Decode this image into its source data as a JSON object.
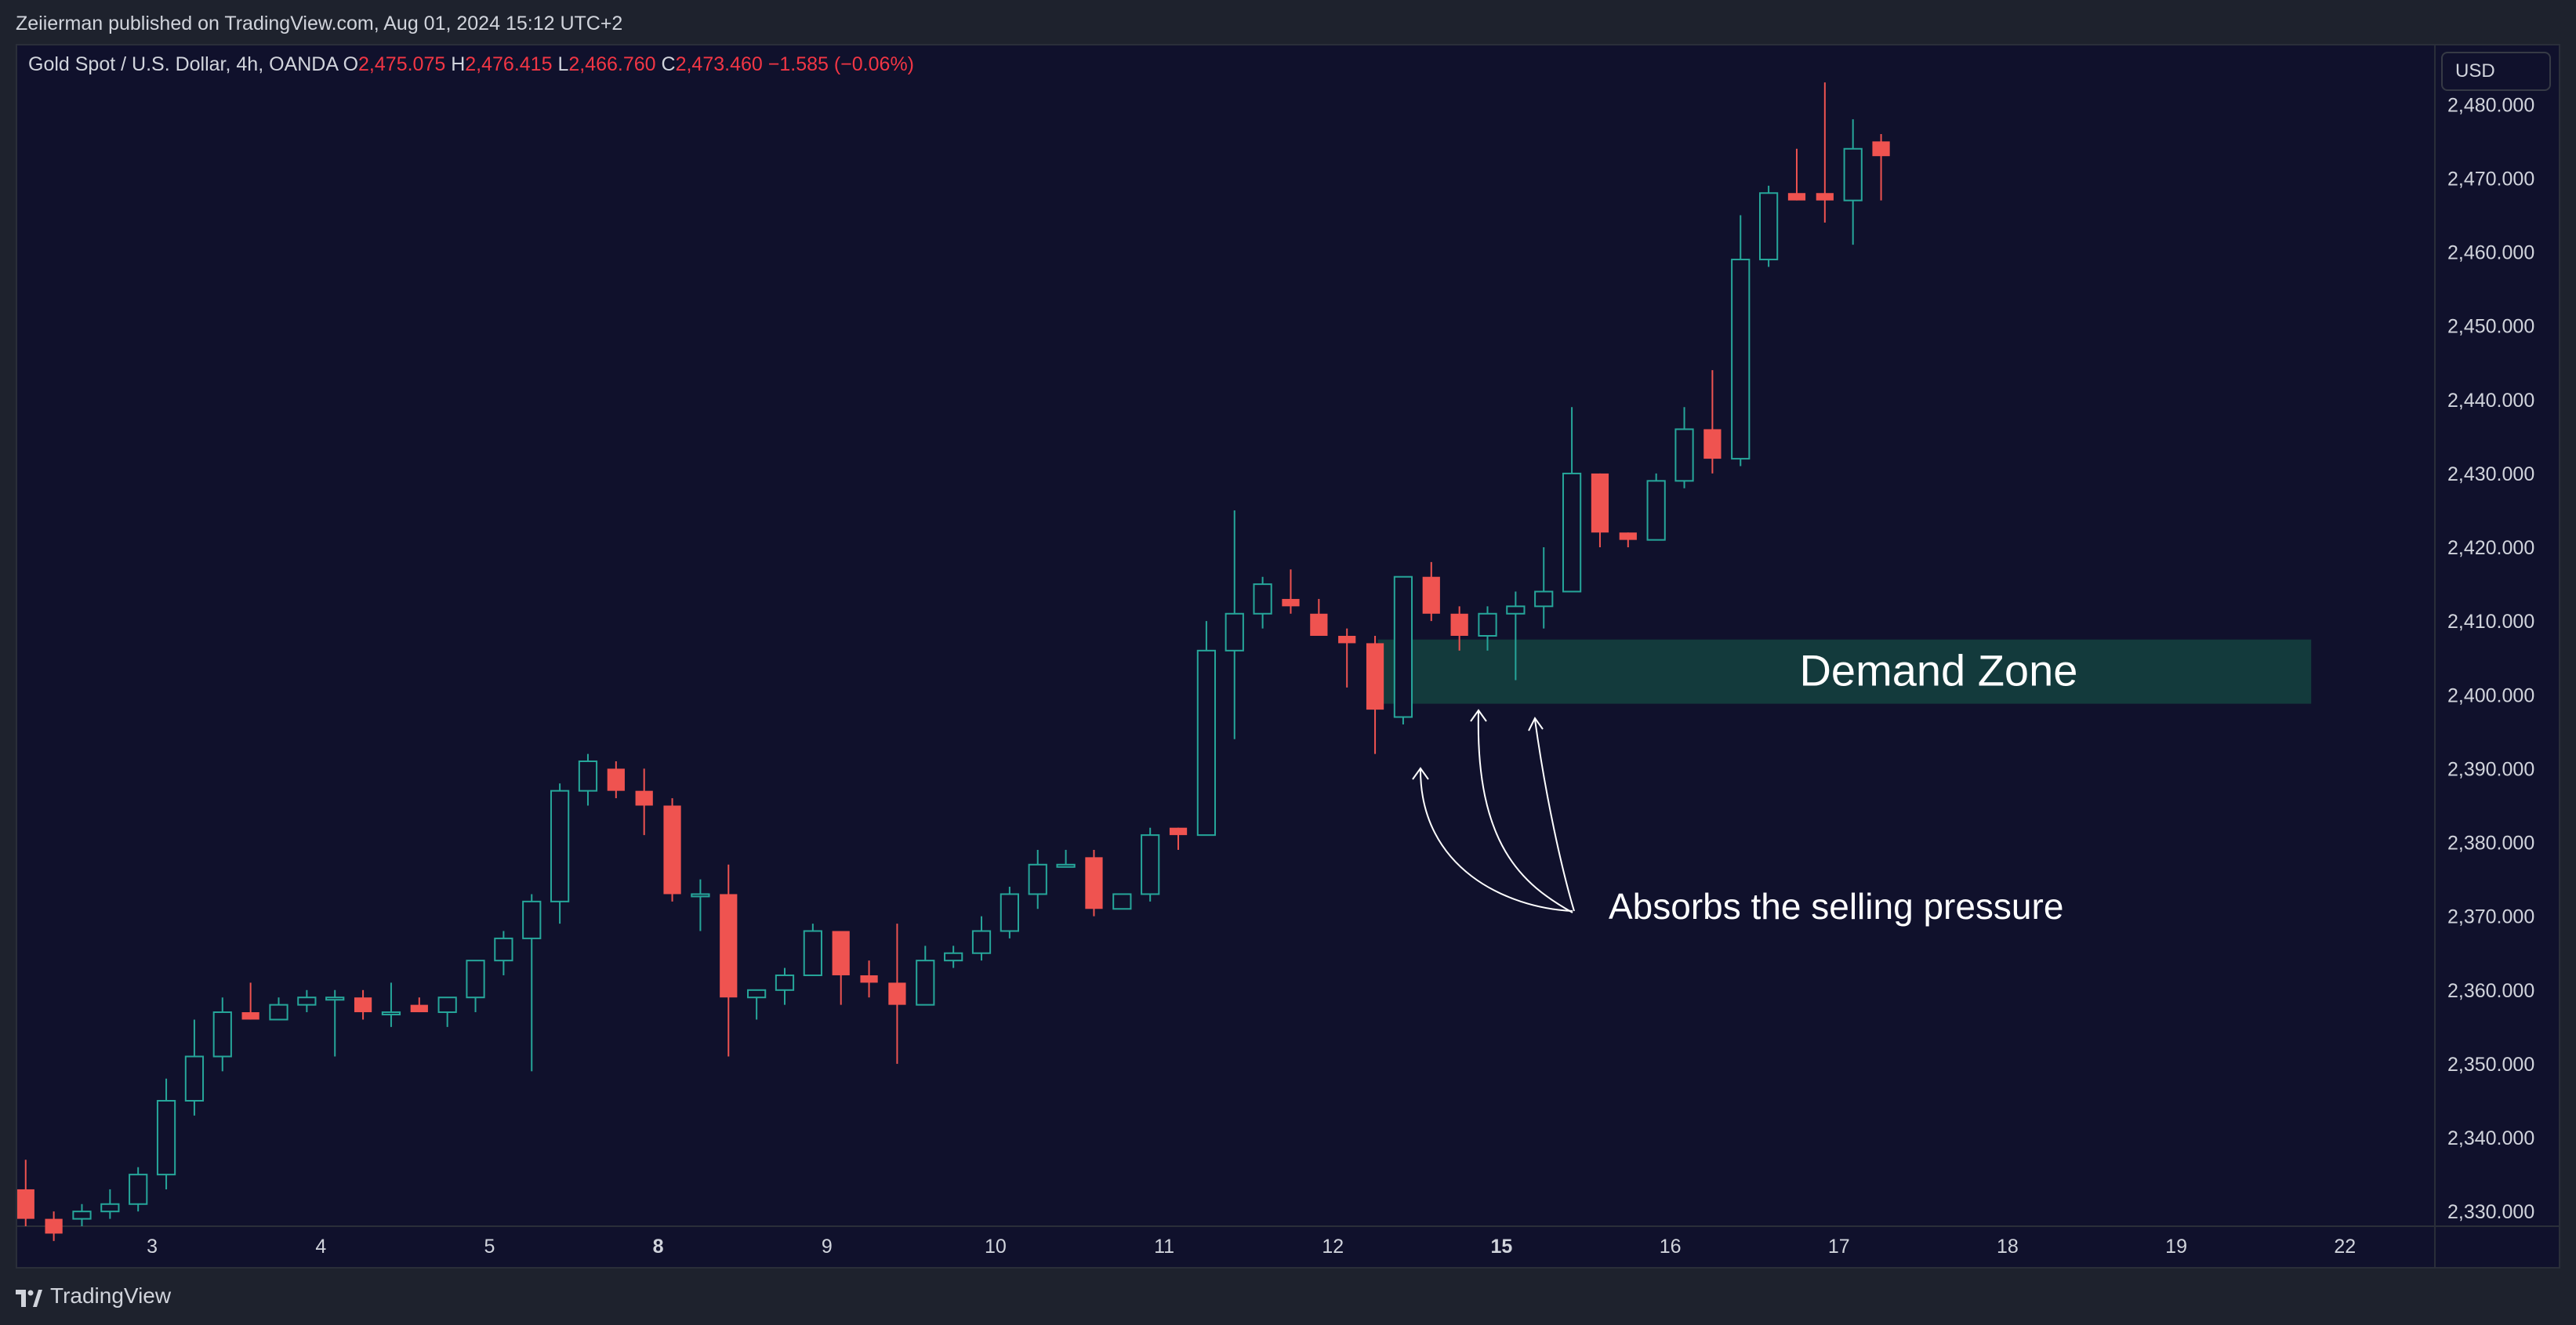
{
  "header": {
    "published": "Zeiierman published on TradingView.com, Aug 01, 2024 15:12 UTC+2"
  },
  "legend": {
    "symbol": "Gold Spot / U.S. Dollar, 4h, OANDA",
    "o_label": "O",
    "o_val": "2,475.075",
    "h_label": "H",
    "h_val": "2,476.415",
    "l_label": "L",
    "l_val": "2,466.760",
    "c_label": "C",
    "c_val": "2,473.460",
    "change": "−1.585 (−0.06%)"
  },
  "currency": "USD",
  "footer": {
    "brand": "TradingView"
  },
  "colors": {
    "background": "#10112c",
    "up_outline": "#26a69a",
    "down_fill": "#ef5350",
    "zone_fill": "#133a3c",
    "text": "#d1d4dc",
    "annotation": "#ffffff"
  },
  "chart_data": {
    "type": "candlestick",
    "y_ticks": [
      "2,330.000",
      "2,340.000",
      "2,350.000",
      "2,360.000",
      "2,370.000",
      "2,380.000",
      "2,390.000",
      "2,400.000",
      "2,410.000",
      "2,420.000",
      "2,430.000",
      "2,440.000",
      "2,450.000",
      "2,460.000",
      "2,470.000",
      "2,480.000"
    ],
    "ylim": [
      2328,
      2488
    ],
    "x_ticks": [
      {
        "label": "3",
        "bar": 4.5,
        "bold": false
      },
      {
        "label": "4",
        "bar": 10.5,
        "bold": false
      },
      {
        "label": "5",
        "bar": 16.5,
        "bold": false
      },
      {
        "label": "8",
        "bar": 22.5,
        "bold": true
      },
      {
        "label": "9",
        "bar": 28.5,
        "bold": false
      },
      {
        "label": "10",
        "bar": 34.5,
        "bold": false
      },
      {
        "label": "11",
        "bar": 40.5,
        "bold": false
      },
      {
        "label": "12",
        "bar": 46.5,
        "bold": false
      },
      {
        "label": "15",
        "bar": 52.5,
        "bold": true
      },
      {
        "label": "16",
        "bar": 58.5,
        "bold": false
      },
      {
        "label": "17",
        "bar": 64.5,
        "bold": false
      },
      {
        "label": "18",
        "bar": 70.5,
        "bold": false
      },
      {
        "label": "19",
        "bar": 76.5,
        "bold": false
      },
      {
        "label": "22",
        "bar": 82.5,
        "bold": false
      }
    ],
    "x_range": [
      -0.3,
      85.7
    ],
    "candles": [
      [
        2333,
        2337,
        2328,
        2329
      ],
      [
        2329,
        2330,
        2326,
        2327
      ],
      [
        2329,
        2331,
        2328,
        2330
      ],
      [
        2330,
        2333,
        2329,
        2331
      ],
      [
        2331,
        2336,
        2330,
        2335
      ],
      [
        2335,
        2348,
        2333,
        2345
      ],
      [
        2345,
        2356,
        2343,
        2351
      ],
      [
        2351,
        2359,
        2349,
        2357
      ],
      [
        2357,
        2361,
        2356,
        2356
      ],
      [
        2356,
        2359,
        2356,
        2358
      ],
      [
        2358,
        2360,
        2357,
        2359
      ],
      [
        2359,
        2360,
        2351,
        2359
      ],
      [
        2359,
        2360,
        2356,
        2357
      ],
      [
        2357,
        2361,
        2355,
        2357
      ],
      [
        2358,
        2359,
        2357,
        2357
      ],
      [
        2357,
        2359,
        2355,
        2359
      ],
      [
        2359,
        2364,
        2357,
        2364
      ],
      [
        2364,
        2368,
        2362,
        2367
      ],
      [
        2367,
        2373,
        2349,
        2372
      ],
      [
        2372,
        2388,
        2369,
        2387
      ],
      [
        2387,
        2392,
        2385,
        2391
      ],
      [
        2390,
        2391,
        2386,
        2387
      ],
      [
        2387,
        2390,
        2381,
        2385
      ],
      [
        2385,
        2386,
        2372,
        2373
      ],
      [
        2373,
        2375,
        2368,
        2373
      ],
      [
        2373,
        2377,
        2351,
        2359
      ],
      [
        2359,
        2360,
        2356,
        2360
      ],
      [
        2360,
        2363,
        2358,
        2362
      ],
      [
        2362,
        2369,
        2362,
        2368
      ],
      [
        2368,
        2368,
        2358,
        2362
      ],
      [
        2362,
        2364,
        2359,
        2361
      ],
      [
        2361,
        2369,
        2350,
        2358
      ],
      [
        2358,
        2366,
        2358,
        2364
      ],
      [
        2364,
        2366,
        2363,
        2365
      ],
      [
        2365,
        2370,
        2364,
        2368
      ],
      [
        2368,
        2374,
        2367,
        2373
      ],
      [
        2373,
        2379,
        2371,
        2377
      ],
      [
        2377,
        2379,
        2377,
        2377
      ],
      [
        2378,
        2379,
        2370,
        2371
      ],
      [
        2371,
        2373,
        2371,
        2373
      ],
      [
        2373,
        2382,
        2372,
        2381
      ],
      [
        2382,
        2382,
        2379,
        2381
      ],
      [
        2381,
        2410,
        2381,
        2406
      ],
      [
        2406,
        2425,
        2394,
        2411
      ],
      [
        2411,
        2416,
        2409,
        2415
      ],
      [
        2413,
        2417,
        2411,
        2412
      ],
      [
        2411,
        2413,
        2408,
        2408
      ],
      [
        2408,
        2409,
        2401,
        2407
      ],
      [
        2407,
        2408,
        2392,
        2398
      ],
      [
        2397,
        2416,
        2396,
        2416
      ],
      [
        2416,
        2418,
        2410,
        2411
      ],
      [
        2411,
        2412,
        2406,
        2408
      ],
      [
        2408,
        2412,
        2406,
        2411
      ],
      [
        2411,
        2414,
        2402,
        2412
      ],
      [
        2412,
        2420,
        2409,
        2414
      ],
      [
        2414,
        2439,
        2414,
        2430
      ],
      [
        2430,
        2430,
        2420,
        2422
      ],
      [
        2422,
        2422,
        2420,
        2421
      ],
      [
        2421,
        2430,
        2421,
        2429
      ],
      [
        2429,
        2439,
        2428,
        2436
      ],
      [
        2436,
        2444,
        2430,
        2432
      ],
      [
        2432,
        2465,
        2431,
        2459
      ],
      [
        2459,
        2469,
        2458,
        2468
      ],
      [
        2468,
        2474,
        2467,
        2467
      ],
      [
        2468,
        2483,
        2464,
        2467
      ],
      [
        2467,
        2478,
        2461,
        2474
      ],
      [
        2475,
        2476,
        2467,
        2473
      ]
    ],
    "zone": {
      "label": "Demand Zone",
      "x_start": 48.1,
      "x_end": 81.3,
      "y_low": 2398.8,
      "y_high": 2407.5
    },
    "annotation": {
      "label": "Absorbs the selling pressure"
    }
  }
}
